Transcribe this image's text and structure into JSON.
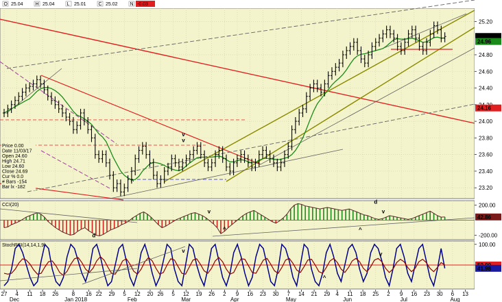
{
  "header": {
    "fields": [
      {
        "key": "O",
        "value": "25.04"
      },
      {
        "key": "H",
        "value": "25.04"
      },
      {
        "key": "L",
        "value": "25.01"
      },
      {
        "key": "C",
        "value": "25.02"
      },
      {
        "key": "N",
        "value": "-0.03"
      }
    ]
  },
  "price_panel": {
    "y_ticks": [
      "25.20",
      "24.80",
      "24.60",
      "24.40",
      "24.20",
      "24.00",
      "23.80",
      "23.60",
      "23.40",
      "23.20"
    ],
    "y_tick_values": [
      25.2,
      24.8,
      24.6,
      24.4,
      24.2,
      24.0,
      23.8,
      23.6,
      23.4,
      23.2
    ],
    "y_range": [
      23.07,
      25.36
    ],
    "badges": [
      {
        "text": "25.02",
        "value": 25.02,
        "bg": "#000000",
        "fg": "#ffffff"
      },
      {
        "text": "24.96",
        "value": 24.96,
        "bg": "#1a8a1a",
        "fg": "#ffffff"
      },
      {
        "text": "24.16",
        "value": 24.16,
        "bg": "#e02020",
        "fg": "#ffffff"
      }
    ],
    "info_box": [
      "Price 0.00",
      "Date 11/03/17",
      "Open 24.60",
      "High 24.71",
      "Low 24.60",
      "Close 24.69",
      "Cur % 0.0",
      "# Bars -154",
      "Bar lx -182"
    ],
    "annotations": [
      {
        "text": "^",
        "color": "#1a8a1a",
        "date_index": 50,
        "value": 23.26
      },
      {
        "text": "v",
        "color": "#1a8a1a",
        "date_index": 70,
        "value": 23.82
      },
      {
        "text": "v",
        "color": "#c000c0",
        "date_index": 70,
        "value": 23.75
      }
    ]
  },
  "cci_panel": {
    "title": "CCI(20)",
    "y_ticks": [
      "200.00",
      "-200.00"
    ],
    "y_tick_values": [
      200,
      -200
    ],
    "y_range": [
      -260,
      260
    ],
    "badge": {
      "text": "42.86",
      "value": 42.86,
      "bg": "#7a1a1a",
      "fg": "#ffffff"
    },
    "annotations": [
      {
        "text": "d",
        "color": "#1a8a1a",
        "date_index": 35,
        "value": -230
      },
      {
        "text": "v",
        "color": "#e02020",
        "date_index": 80,
        "value": 90
      },
      {
        "text": "^",
        "color": "#2020d0",
        "date_index": 86,
        "value": -140
      },
      {
        "text": "^",
        "color": "#2020d0",
        "date_index": 139,
        "value": -150
      },
      {
        "text": "d",
        "color": "#e02020",
        "date_index": 145,
        "value": 220
      },
      {
        "text": "v",
        "color": "#e02020",
        "date_index": 148,
        "value": 90
      }
    ]
  },
  "stoch_panel": {
    "title": "StochRSI(14,14,1,9)",
    "y_ticks": [
      "100.00",
      "50.00"
    ],
    "y_tick_values": [
      100,
      50
    ],
    "y_range": [
      -8,
      108
    ],
    "badges": [
      {
        "text": "50.00",
        "value": 50,
        "bg": "#e02020",
        "fg": "#ffffff"
      },
      {
        "text": "41.98",
        "value": 41.98,
        "bg": "#1a1aa0",
        "fg": "#ffffff"
      }
    ],
    "annotations": [
      {
        "text": "v",
        "color": "#e02020",
        "date_index": 70,
        "value": 80
      },
      {
        "text": "^",
        "color": "#2020d0",
        "date_index": 125,
        "value": 15
      },
      {
        "text": "v",
        "color": "#e02020",
        "date_index": 147,
        "value": 72
      }
    ]
  },
  "x_axis": {
    "day_labels": [
      {
        "text": "27",
        "i": 0
      },
      {
        "text": "4",
        "i": 5
      },
      {
        "text": "11",
        "i": 10
      },
      {
        "text": "18",
        "i": 15
      },
      {
        "text": "26",
        "i": 20
      },
      {
        "text": "8",
        "i": 27
      },
      {
        "text": "16",
        "i": 33
      },
      {
        "text": "22",
        "i": 37
      },
      {
        "text": "29",
        "i": 42
      },
      {
        "text": "5",
        "i": 47
      },
      {
        "text": "12",
        "i": 52
      },
      {
        "text": "20",
        "i": 57
      },
      {
        "text": "26",
        "i": 61
      },
      {
        "text": "5",
        "i": 66
      },
      {
        "text": "12",
        "i": 71
      },
      {
        "text": "19",
        "i": 76
      },
      {
        "text": "26",
        "i": 81
      },
      {
        "text": "2",
        "i": 86
      },
      {
        "text": "9",
        "i": 91
      },
      {
        "text": "16",
        "i": 96
      },
      {
        "text": "23",
        "i": 101
      },
      {
        "text": "30",
        "i": 106
      },
      {
        "text": "7",
        "i": 111
      },
      {
        "text": "14",
        "i": 116
      },
      {
        "text": "21",
        "i": 121
      },
      {
        "text": "29",
        "i": 126
      },
      {
        "text": "4",
        "i": 130
      },
      {
        "text": "11",
        "i": 135
      },
      {
        "text": "18",
        "i": 140
      },
      {
        "text": "25",
        "i": 145
      },
      {
        "text": "2",
        "i": 150
      },
      {
        "text": "9",
        "i": 155
      },
      {
        "text": "16",
        "i": 160
      },
      {
        "text": "23",
        "i": 165
      },
      {
        "text": "30",
        "i": 170
      },
      {
        "text": "6",
        "i": 175
      },
      {
        "text": "13",
        "i": 180
      }
    ],
    "month_labels": [
      {
        "text": "Dec",
        "i": 4
      },
      {
        "text": "Jan 2018",
        "i": 28
      },
      {
        "text": "Feb",
        "i": 50
      },
      {
        "text": "Mar",
        "i": 71
      },
      {
        "text": "Apr",
        "i": 90
      },
      {
        "text": "May",
        "i": 112
      },
      {
        "text": "Jun",
        "i": 134
      },
      {
        "text": "Jul",
        "i": 156
      },
      {
        "text": "Aug",
        "i": 176
      }
    ]
  },
  "chart_data": [
    {
      "type": "ohlc",
      "name": "price",
      "y_range": [
        23.07,
        25.36
      ],
      "close": [
        24.1,
        24.15,
        24.2,
        24.25,
        24.3,
        24.35,
        24.4,
        24.42,
        24.45,
        24.5,
        24.45,
        24.38,
        24.3,
        24.25,
        24.2,
        24.15,
        24.1,
        24.05,
        24.0,
        23.9,
        23.95,
        24.1,
        24.0,
        23.9,
        23.8,
        23.6,
        23.55,
        23.6,
        23.5,
        23.35,
        23.2,
        23.25,
        23.15,
        23.2,
        23.3,
        23.4,
        23.55,
        23.65,
        23.7,
        23.6,
        23.5,
        23.35,
        23.25,
        23.3,
        23.4,
        23.45,
        23.55,
        23.5,
        23.45,
        23.5,
        23.55,
        23.6,
        23.65,
        23.7,
        23.6,
        23.5,
        23.45,
        23.5,
        23.6,
        23.65,
        23.55,
        23.45,
        23.4,
        23.5,
        23.55,
        23.6,
        23.55,
        23.5,
        23.45,
        23.5,
        23.6,
        23.65,
        23.6,
        23.55,
        23.5,
        23.45,
        23.5,
        23.6,
        23.7,
        23.9,
        24.0,
        24.1,
        24.15,
        24.3,
        24.4,
        24.45,
        24.4,
        24.35,
        24.45,
        24.55,
        24.6,
        24.65,
        24.7,
        24.8,
        24.85,
        24.9,
        24.95,
        24.85,
        24.75,
        24.7,
        24.8,
        24.9,
        24.95,
        25.0,
        25.05,
        25.1,
        25.05,
        25.0,
        24.9,
        24.85,
        24.95,
        25.05,
        25.1,
        25.0,
        24.9,
        24.85,
        24.95,
        25.05,
        25.15,
        25.1,
        25.0,
        25.02
      ]
    },
    {
      "type": "line",
      "name": "cci",
      "y_range": [
        -260,
        260
      ],
      "values": [
        -100,
        -90,
        -60,
        -40,
        -20,
        10,
        40,
        60,
        80,
        100,
        80,
        40,
        -20,
        -60,
        -100,
        -130,
        -160,
        -180,
        -200,
        -190,
        -150,
        -120,
        -100,
        -140,
        -170,
        -200,
        -210,
        -190,
        -160,
        -130,
        -110,
        -90,
        -60,
        -40,
        -10,
        30,
        60,
        90,
        110,
        80,
        40,
        -10,
        -60,
        -100,
        -80,
        -50,
        -20,
        10,
        30,
        50,
        70,
        90,
        100,
        80,
        60,
        30,
        -10,
        -50,
        -100,
        -180,
        -150,
        -100,
        -60,
        -20,
        20,
        60,
        90,
        110,
        130,
        100,
        70,
        40,
        10,
        -20,
        -40,
        -10,
        30,
        80,
        150,
        200,
        220,
        210,
        190,
        180,
        170,
        160,
        150,
        160,
        170,
        160,
        150,
        140,
        130,
        140,
        150,
        130,
        110,
        90,
        70,
        60,
        40,
        20,
        10,
        20,
        40,
        60,
        50,
        40,
        30,
        20,
        10,
        20,
        40,
        60,
        80,
        100,
        120,
        90,
        60,
        40,
        42.86
      ]
    },
    {
      "type": "line",
      "name": "stochrsi",
      "y_range": [
        -8,
        108
      ],
      "series": [
        {
          "name": "StochRSI",
          "color": "#00008b",
          "values": [
            0,
            10,
            40,
            90,
            100,
            80,
            50,
            20,
            0,
            10,
            60,
            100,
            90,
            40,
            10,
            0,
            20,
            70,
            100,
            90,
            60,
            30,
            10,
            40,
            90,
            100,
            70,
            30,
            0,
            10,
            50,
            90,
            100,
            60,
            20,
            0,
            30,
            80,
            100,
            70,
            30,
            0,
            20,
            60,
            100,
            90,
            40,
            10,
            0,
            50,
            100,
            90,
            50,
            20,
            0,
            40,
            90,
            100,
            60,
            20,
            0,
            30,
            80,
            100,
            70,
            30,
            0,
            20,
            70,
            100,
            90,
            50,
            10,
            0,
            40,
            100,
            90,
            60,
            20,
            0,
            50,
            100,
            90,
            40,
            10,
            0,
            30,
            80,
            100,
            70,
            30,
            10,
            50,
            90,
            100,
            80,
            40,
            10,
            30,
            80,
            100,
            90,
            60,
            20,
            0,
            40,
            90,
            100,
            70,
            30,
            10,
            50,
            90,
            100,
            60,
            20,
            0,
            40,
            90,
            41.98
          ]
        },
        {
          "name": "Signal",
          "color": "#8b0000",
          "values": [
            30,
            28,
            30,
            40,
            55,
            65,
            62,
            52,
            38,
            28,
            30,
            45,
            58,
            60,
            48,
            32,
            25,
            35,
            52,
            65,
            68,
            56,
            40,
            32,
            42,
            60,
            70,
            62,
            45,
            30,
            28,
            42,
            60,
            65,
            52,
            35,
            28,
            40,
            58,
            68,
            60,
            42,
            28,
            32,
            50,
            65,
            62,
            46,
            30,
            28,
            45,
            62,
            65,
            52,
            36,
            30,
            42,
            60,
            68,
            58,
            40,
            28,
            32,
            50,
            65,
            64,
            48,
            32,
            30,
            46,
            62,
            66,
            52,
            36,
            30,
            44,
            62,
            66,
            54,
            38,
            32,
            46,
            62,
            64,
            50,
            34,
            30,
            44,
            60,
            66,
            56,
            40,
            32,
            44,
            60,
            66,
            58,
            42,
            34,
            46,
            62,
            66,
            58,
            42,
            32,
            40,
            56,
            64,
            58,
            44,
            34,
            42,
            58,
            64,
            56,
            42,
            34,
            44,
            56,
            50
          ]
        }
      ]
    }
  ]
}
